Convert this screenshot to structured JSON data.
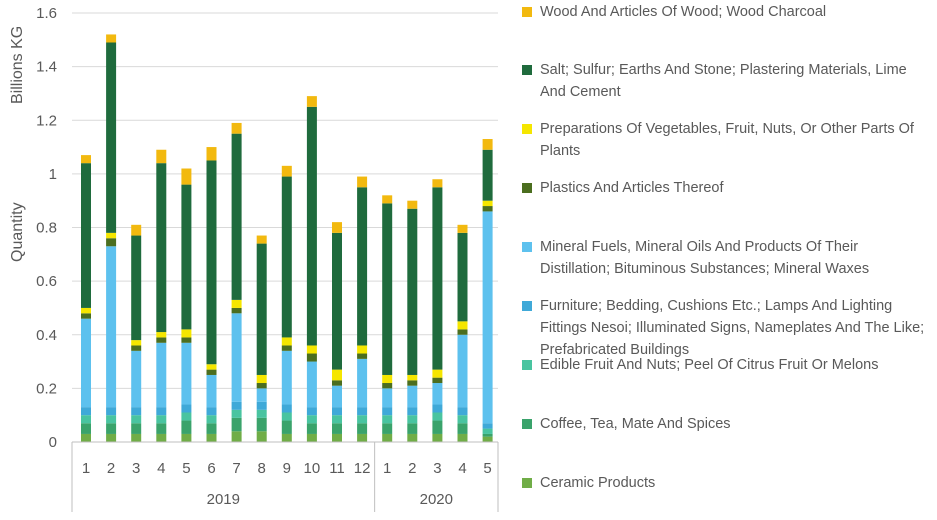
{
  "chart_data": {
    "type": "bar",
    "stacked": true,
    "ylabel_unit": "Billions KG",
    "ylabel": "Quantity",
    "xlabel": "",
    "ylim": [
      0,
      1.6
    ],
    "yticks": [
      "0",
      "0.2",
      "0.4",
      "0.6",
      "0.8",
      "1",
      "1.2",
      "1.4",
      "1.6"
    ],
    "grid": true,
    "legend_position": "right",
    "categories": [
      "1",
      "2",
      "3",
      "4",
      "5",
      "6",
      "7",
      "8",
      "9",
      "10",
      "11",
      "12",
      "1",
      "2",
      "3",
      "4",
      "5"
    ],
    "groups": [
      {
        "label": "2019",
        "count": 12
      },
      {
        "label": "2020",
        "count": 5
      }
    ],
    "series": [
      {
        "name": "Ceramic Products",
        "color": "#70AD47",
        "values": [
          0.03,
          0.03,
          0.03,
          0.03,
          0.03,
          0.03,
          0.04,
          0.04,
          0.03,
          0.03,
          0.03,
          0.03,
          0.03,
          0.03,
          0.03,
          0.03,
          0.02
        ]
      },
      {
        "name": "Coffee, Tea, Mate And Spices",
        "color": "#3AA36B",
        "values": [
          0.04,
          0.04,
          0.04,
          0.04,
          0.05,
          0.04,
          0.05,
          0.05,
          0.05,
          0.04,
          0.04,
          0.04,
          0.04,
          0.04,
          0.05,
          0.04,
          0.01
        ]
      },
      {
        "name": "Edible Fruit And Nuts; Peel Of Citrus Fruit Or Melons",
        "color": "#49C4A0",
        "values": [
          0.03,
          0.03,
          0.03,
          0.03,
          0.03,
          0.03,
          0.03,
          0.03,
          0.03,
          0.03,
          0.03,
          0.03,
          0.03,
          0.03,
          0.03,
          0.03,
          0.02
        ]
      },
      {
        "name": "Furniture; Bedding, Cushions Etc.; Lamps And Lighting Fittings Nesoi; Illuminated Signs, Nameplates And The Like; Prefabricated Buildings",
        "color": "#3FA9D8",
        "values": [
          0.03,
          0.03,
          0.03,
          0.03,
          0.03,
          0.03,
          0.03,
          0.03,
          0.03,
          0.03,
          0.03,
          0.03,
          0.03,
          0.03,
          0.03,
          0.03,
          0.02
        ]
      },
      {
        "name": "Mineral Fuels, Mineral Oils And Products Of Their Distillation; Bituminous Substances; Mineral Waxes",
        "color": "#5DC1EE",
        "values": [
          0.33,
          0.6,
          0.21,
          0.24,
          0.23,
          0.12,
          0.33,
          0.05,
          0.2,
          0.17,
          0.08,
          0.18,
          0.07,
          0.08,
          0.08,
          0.27,
          0.79
        ]
      },
      {
        "name": "Plastics And Articles Thereof",
        "color": "#4B6E1F",
        "values": [
          0.02,
          0.03,
          0.02,
          0.02,
          0.02,
          0.02,
          0.02,
          0.02,
          0.02,
          0.03,
          0.02,
          0.02,
          0.02,
          0.02,
          0.02,
          0.02,
          0.02
        ]
      },
      {
        "name": "Preparations Of Vegetables, Fruit, Nuts, Or Other Parts Of Plants",
        "color": "#F5E600",
        "values": [
          0.02,
          0.02,
          0.02,
          0.02,
          0.03,
          0.02,
          0.03,
          0.03,
          0.03,
          0.03,
          0.04,
          0.03,
          0.03,
          0.02,
          0.03,
          0.03,
          0.02
        ]
      },
      {
        "name": "Salt; Sulfur; Earths And Stone; Plastering Materials, Lime And Cement",
        "color": "#1F6B3D",
        "values": [
          0.54,
          0.71,
          0.39,
          0.63,
          0.54,
          0.76,
          0.62,
          0.49,
          0.6,
          0.89,
          0.51,
          0.59,
          0.64,
          0.62,
          0.68,
          0.33,
          0.19
        ]
      },
      {
        "name": "Wood And Articles Of Wood; Wood Charcoal",
        "color": "#F2B90F",
        "values": [
          0.03,
          0.03,
          0.04,
          0.05,
          0.06,
          0.05,
          0.04,
          0.03,
          0.04,
          0.04,
          0.04,
          0.04,
          0.03,
          0.03,
          0.03,
          0.03,
          0.04
        ]
      }
    ]
  }
}
